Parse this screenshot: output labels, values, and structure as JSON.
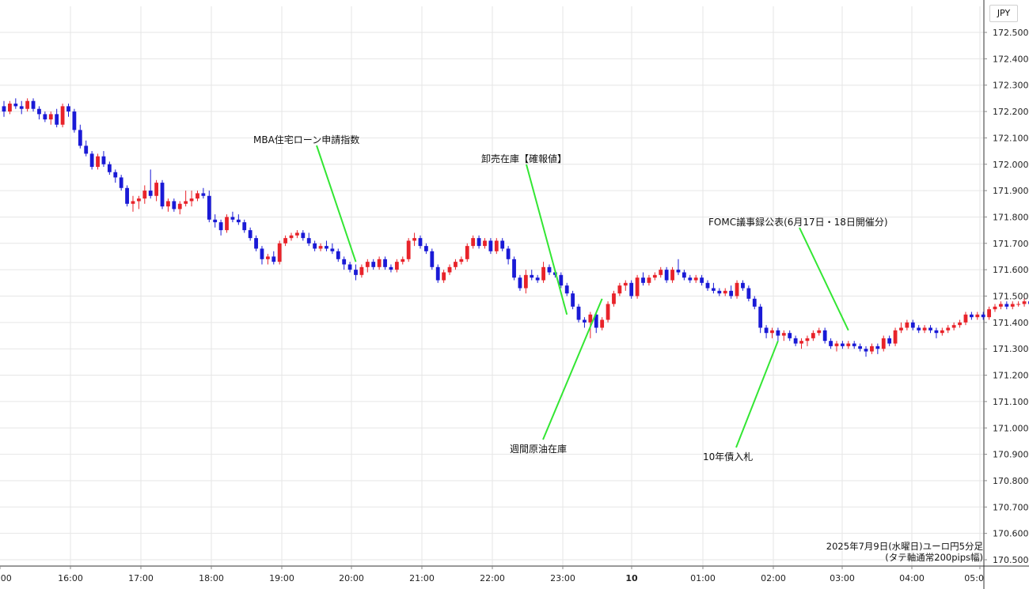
{
  "chart_data": {
    "type": "candlestick",
    "unit": "JPY",
    "caption_line1": "2025年7月9日(水曜日)ユーロ円5分足",
    "caption_line2": "(タテ軸通常200pips幅)",
    "ylim": [
      170.5,
      172.55
    ],
    "y_ticks": [
      "172.500",
      "172.400",
      "172.300",
      "172.200",
      "172.100",
      "172.000",
      "171.900",
      "171.800",
      "171.700",
      "171.600",
      "171.500",
      "171.400",
      "171.300",
      "171.200",
      "171.100",
      "171.000",
      "170.900",
      "170.800",
      "170.700",
      "170.600",
      "170.500"
    ],
    "x_ticks": [
      ":00",
      "16:00",
      "17:00",
      "18:00",
      "19:00",
      "20:00",
      "21:00",
      "22:00",
      "23:00",
      "10",
      "01:00",
      "02:00",
      "03:00",
      "04:00",
      "05:0"
    ],
    "x_start": "15:00",
    "bar_minutes": 5,
    "grid": true,
    "colors": {
      "up": "#e8232a",
      "down": "#1a1ad6",
      "annotation_line": "#33e633",
      "grid": "#e6e6e6"
    },
    "annotations": [
      {
        "label": "MBA住宅ローン申請指数",
        "time": "20:00",
        "price": 171.63
      },
      {
        "label": "卸売在庫【確報値】",
        "time": "23:00",
        "price": 171.43
      },
      {
        "label": "週間原油在庫",
        "time": "23:30",
        "price": 171.49
      },
      {
        "label": "FOMC議事録公表(6月17日・18日開催分)",
        "time": "03:00",
        "price": 171.37
      },
      {
        "label": "10年債入札",
        "time": "02:00",
        "price": 171.33
      }
    ],
    "candles": [
      [
        172.22,
        172.24,
        172.18,
        172.2
      ],
      [
        172.2,
        172.24,
        172.19,
        172.23
      ],
      [
        172.23,
        172.25,
        172.21,
        172.22
      ],
      [
        172.22,
        172.24,
        172.19,
        172.21
      ],
      [
        172.21,
        172.25,
        172.2,
        172.24
      ],
      [
        172.24,
        172.25,
        172.2,
        172.21
      ],
      [
        172.21,
        172.22,
        172.17,
        172.19
      ],
      [
        172.19,
        172.2,
        172.16,
        172.17
      ],
      [
        172.17,
        172.2,
        172.15,
        172.19
      ],
      [
        172.19,
        172.21,
        172.14,
        172.15
      ],
      [
        172.15,
        172.23,
        172.14,
        172.22
      ],
      [
        172.22,
        172.23,
        172.18,
        172.2
      ],
      [
        172.2,
        172.21,
        172.12,
        172.13
      ],
      [
        172.13,
        172.15,
        172.06,
        172.07
      ],
      [
        172.07,
        172.09,
        172.03,
        172.04
      ],
      [
        172.04,
        172.05,
        171.98,
        171.99
      ],
      [
        171.99,
        172.04,
        171.98,
        172.03
      ],
      [
        172.03,
        172.05,
        171.99,
        172.0
      ],
      [
        172.0,
        172.01,
        171.96,
        171.97
      ],
      [
        171.97,
        171.98,
        171.93,
        171.95
      ],
      [
        171.95,
        171.96,
        171.9,
        171.91
      ],
      [
        171.91,
        171.92,
        171.84,
        171.85
      ],
      [
        171.85,
        171.88,
        171.82,
        171.86
      ],
      [
        171.86,
        171.88,
        171.83,
        171.87
      ],
      [
        171.87,
        171.92,
        171.85,
        171.9
      ],
      [
        171.9,
        171.98,
        171.87,
        171.88
      ],
      [
        171.88,
        171.94,
        171.86,
        171.93
      ],
      [
        171.93,
        171.94,
        171.83,
        171.84
      ],
      [
        171.84,
        171.87,
        171.82,
        171.86
      ],
      [
        171.86,
        171.87,
        171.82,
        171.83
      ],
      [
        171.83,
        171.86,
        171.81,
        171.85
      ],
      [
        171.85,
        171.9,
        171.84,
        171.86
      ],
      [
        171.86,
        171.9,
        171.84,
        171.87
      ],
      [
        171.87,
        171.9,
        171.86,
        171.89
      ],
      [
        171.89,
        171.91,
        171.87,
        171.88
      ],
      [
        171.88,
        171.9,
        171.78,
        171.79
      ],
      [
        171.79,
        171.81,
        171.76,
        171.78
      ],
      [
        171.78,
        171.79,
        171.73,
        171.75
      ],
      [
        171.75,
        171.81,
        171.74,
        171.8
      ],
      [
        171.8,
        171.82,
        171.78,
        171.79
      ],
      [
        171.79,
        171.81,
        171.77,
        171.78
      ],
      [
        171.78,
        171.79,
        171.74,
        171.75
      ],
      [
        171.75,
        171.76,
        171.71,
        171.72
      ],
      [
        171.72,
        171.73,
        171.67,
        171.68
      ],
      [
        171.68,
        171.69,
        171.62,
        171.64
      ],
      [
        171.64,
        171.66,
        171.62,
        171.65
      ],
      [
        171.65,
        171.67,
        171.62,
        171.63
      ],
      [
        171.63,
        171.71,
        171.62,
        171.7
      ],
      [
        171.7,
        171.73,
        171.69,
        171.72
      ],
      [
        171.72,
        171.74,
        171.71,
        171.73
      ],
      [
        171.73,
        171.75,
        171.72,
        171.74
      ],
      [
        171.74,
        171.75,
        171.71,
        171.72
      ],
      [
        171.72,
        171.74,
        171.69,
        171.7
      ],
      [
        171.7,
        171.71,
        171.67,
        171.68
      ],
      [
        171.68,
        171.7,
        171.67,
        171.69
      ],
      [
        171.69,
        171.71,
        171.67,
        171.68
      ],
      [
        171.68,
        171.7,
        171.66,
        171.67
      ],
      [
        171.67,
        171.68,
        171.63,
        171.64
      ],
      [
        171.64,
        171.65,
        171.6,
        171.62
      ],
      [
        171.62,
        171.63,
        171.59,
        171.6
      ],
      [
        171.6,
        171.62,
        171.56,
        171.58
      ],
      [
        171.58,
        171.62,
        171.57,
        171.61
      ],
      [
        171.61,
        171.64,
        171.59,
        171.63
      ],
      [
        171.63,
        171.64,
        171.6,
        171.61
      ],
      [
        171.61,
        171.65,
        171.6,
        171.64
      ],
      [
        171.64,
        171.65,
        171.6,
        171.61
      ],
      [
        171.61,
        171.62,
        171.59,
        171.6
      ],
      [
        171.6,
        171.64,
        171.59,
        171.63
      ],
      [
        171.63,
        171.65,
        171.62,
        171.64
      ],
      [
        171.64,
        171.72,
        171.63,
        171.71
      ],
      [
        171.71,
        171.74,
        171.69,
        171.72
      ],
      [
        171.72,
        171.73,
        171.68,
        171.69
      ],
      [
        171.69,
        171.7,
        171.66,
        171.67
      ],
      [
        171.67,
        171.68,
        171.6,
        171.61
      ],
      [
        171.61,
        171.62,
        171.55,
        171.56
      ],
      [
        171.56,
        171.6,
        171.55,
        171.59
      ],
      [
        171.59,
        171.62,
        171.58,
        171.61
      ],
      [
        171.61,
        171.64,
        171.6,
        171.63
      ],
      [
        171.63,
        171.65,
        171.62,
        171.64
      ],
      [
        171.64,
        171.7,
        171.63,
        171.69
      ],
      [
        171.69,
        171.73,
        171.68,
        171.72
      ],
      [
        171.72,
        171.73,
        171.68,
        171.69
      ],
      [
        171.69,
        171.72,
        171.68,
        171.71
      ],
      [
        171.71,
        171.72,
        171.66,
        171.67
      ],
      [
        171.67,
        171.72,
        171.66,
        171.71
      ],
      [
        171.71,
        171.72,
        171.67,
        171.68
      ],
      [
        171.68,
        171.69,
        171.62,
        171.64
      ],
      [
        171.64,
        171.65,
        171.56,
        171.57
      ],
      [
        171.57,
        171.58,
        171.52,
        171.53
      ],
      [
        171.53,
        171.6,
        171.51,
        171.58
      ],
      [
        171.58,
        171.6,
        171.56,
        171.57
      ],
      [
        171.57,
        171.58,
        171.55,
        171.56
      ],
      [
        171.56,
        171.63,
        171.55,
        171.61
      ],
      [
        171.61,
        171.62,
        171.58,
        171.59
      ],
      [
        171.59,
        171.6,
        171.57,
        171.58
      ],
      [
        171.58,
        171.59,
        171.53,
        171.54
      ],
      [
        171.54,
        171.55,
        171.5,
        171.51
      ],
      [
        171.51,
        171.52,
        171.45,
        171.46
      ],
      [
        171.46,
        171.47,
        171.4,
        171.41
      ],
      [
        171.41,
        171.42,
        171.38,
        171.4
      ],
      [
        171.4,
        171.44,
        171.34,
        171.43
      ],
      [
        171.43,
        171.44,
        171.36,
        171.38
      ],
      [
        171.38,
        171.42,
        171.37,
        171.41
      ],
      [
        171.41,
        171.48,
        171.4,
        171.47
      ],
      [
        171.47,
        171.52,
        171.46,
        171.51
      ],
      [
        171.51,
        171.55,
        171.5,
        171.54
      ],
      [
        171.54,
        171.56,
        171.52,
        171.55
      ],
      [
        171.55,
        171.56,
        171.49,
        171.5
      ],
      [
        171.5,
        171.58,
        171.49,
        171.57
      ],
      [
        171.57,
        171.59,
        171.54,
        171.55
      ],
      [
        171.55,
        171.58,
        171.54,
        171.57
      ],
      [
        171.57,
        171.59,
        171.56,
        171.58
      ],
      [
        171.58,
        171.61,
        171.57,
        171.6
      ],
      [
        171.6,
        171.61,
        171.55,
        171.56
      ],
      [
        171.56,
        171.61,
        171.55,
        171.6
      ],
      [
        171.6,
        171.64,
        171.58,
        171.59
      ],
      [
        171.59,
        171.6,
        171.56,
        171.57
      ],
      [
        171.57,
        171.58,
        171.55,
        171.56
      ],
      [
        171.56,
        171.58,
        171.55,
        171.57
      ],
      [
        171.57,
        171.58,
        171.54,
        171.55
      ],
      [
        171.55,
        171.56,
        171.52,
        171.53
      ],
      [
        171.53,
        171.55,
        171.51,
        171.52
      ],
      [
        171.52,
        171.53,
        171.5,
        171.51
      ],
      [
        171.51,
        171.53,
        171.5,
        171.52
      ],
      [
        171.52,
        171.54,
        171.49,
        171.5
      ],
      [
        171.5,
        171.56,
        171.49,
        171.55
      ],
      [
        171.55,
        171.56,
        171.52,
        171.53
      ],
      [
        171.53,
        171.54,
        171.48,
        171.49
      ],
      [
        171.49,
        171.5,
        171.45,
        171.46
      ],
      [
        171.46,
        171.47,
        171.36,
        171.38
      ],
      [
        171.38,
        171.39,
        171.34,
        171.36
      ],
      [
        171.36,
        171.38,
        171.34,
        171.37
      ],
      [
        171.37,
        171.38,
        171.33,
        171.35
      ],
      [
        171.35,
        171.37,
        171.33,
        171.36
      ],
      [
        171.36,
        171.37,
        171.33,
        171.34
      ],
      [
        171.34,
        171.35,
        171.31,
        171.32
      ],
      [
        171.32,
        171.34,
        171.3,
        171.33
      ],
      [
        171.33,
        171.35,
        171.31,
        171.34
      ],
      [
        171.34,
        171.37,
        171.33,
        171.36
      ],
      [
        171.36,
        171.38,
        171.35,
        171.37
      ],
      [
        171.37,
        171.38,
        171.32,
        171.33
      ],
      [
        171.33,
        171.34,
        171.3,
        171.31
      ],
      [
        171.31,
        171.33,
        171.29,
        171.32
      ],
      [
        171.32,
        171.33,
        171.3,
        171.31
      ],
      [
        171.31,
        171.33,
        171.3,
        171.32
      ],
      [
        171.32,
        171.33,
        171.3,
        171.31
      ],
      [
        171.31,
        171.32,
        171.29,
        171.3
      ],
      [
        171.3,
        171.31,
        171.27,
        171.29
      ],
      [
        171.29,
        171.32,
        171.28,
        171.31
      ],
      [
        171.31,
        171.32,
        171.28,
        171.3
      ],
      [
        171.3,
        171.35,
        171.29,
        171.34
      ],
      [
        171.34,
        171.35,
        171.31,
        171.32
      ],
      [
        171.32,
        171.38,
        171.31,
        171.37
      ],
      [
        171.37,
        171.4,
        171.36,
        171.38
      ],
      [
        171.38,
        171.41,
        171.37,
        171.4
      ],
      [
        171.4,
        171.41,
        171.37,
        171.38
      ],
      [
        171.38,
        171.39,
        171.36,
        171.37
      ],
      [
        171.37,
        171.39,
        171.36,
        171.38
      ],
      [
        171.38,
        171.39,
        171.36,
        171.37
      ],
      [
        171.37,
        171.38,
        171.34,
        171.36
      ],
      [
        171.36,
        171.38,
        171.35,
        171.37
      ],
      [
        171.37,
        171.39,
        171.36,
        171.38
      ],
      [
        171.38,
        171.4,
        171.37,
        171.39
      ],
      [
        171.39,
        171.41,
        171.38,
        171.4
      ],
      [
        171.4,
        171.44,
        171.39,
        171.43
      ],
      [
        171.43,
        171.44,
        171.41,
        171.42
      ],
      [
        171.42,
        171.44,
        171.41,
        171.43
      ],
      [
        171.43,
        171.44,
        171.41,
        171.42
      ],
      [
        171.42,
        171.46,
        171.41,
        171.45
      ],
      [
        171.45,
        171.47,
        171.44,
        171.46
      ],
      [
        171.46,
        171.48,
        171.45,
        171.47
      ],
      [
        171.47,
        171.48,
        171.45,
        171.46
      ],
      [
        171.46,
        171.48,
        171.45,
        171.47
      ],
      [
        171.47,
        171.48,
        171.46,
        171.47
      ],
      [
        171.47,
        171.49,
        171.46,
        171.48
      ],
      [
        171.48,
        171.49,
        171.46,
        171.47
      ],
      [
        171.47,
        171.5,
        171.46,
        171.49
      ]
    ]
  }
}
